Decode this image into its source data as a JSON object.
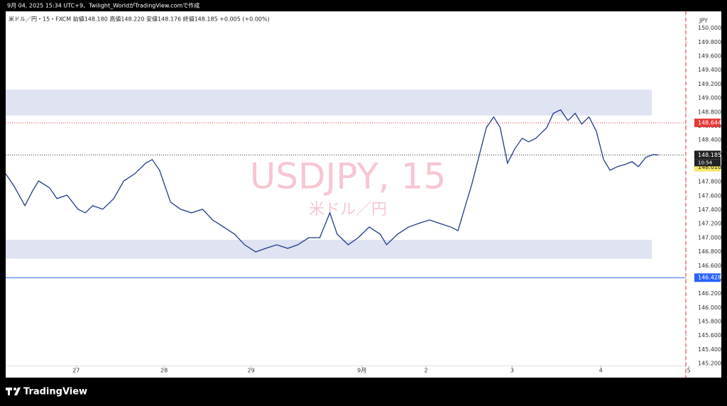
{
  "header": {
    "caption": "9月 04, 2025 15:34 UTC+9、Twilight_WorldがTradingView.comで作成",
    "brand": "TradingView"
  },
  "chart_data": {
    "type": "line",
    "symbol_line": "米ドル／円・15・FXCM  始値148.180  高値148.220  安値148.176  終値148.185  +0.005 (+0.00%)",
    "watermark": "USDJPY, 15",
    "watermark_sub": "米ドル／円",
    "currency": "JPY",
    "countdown": "10:54",
    "color": "#1e3a8a",
    "x": [
      0,
      9,
      21,
      29,
      36,
      48,
      56,
      67,
      79,
      87,
      95,
      106,
      118,
      129,
      141,
      153,
      160,
      168,
      180,
      191,
      203,
      215,
      226,
      238,
      250,
      261,
      273,
      284,
      296,
      308,
      319,
      331,
      343,
      354,
      362,
      374,
      385,
      397,
      409,
      416,
      428,
      440,
      451,
      463,
      474,
      486,
      494,
      502,
      509,
      517,
      525,
      533,
      540,
      548,
      556,
      564,
      571,
      579,
      591,
      598,
      606,
      614,
      622,
      629,
      637,
      645,
      653,
      660,
      668,
      676,
      684,
      691,
      699,
      707,
      713
    ],
    "values": [
      147.915,
      147.742,
      147.458,
      147.661,
      147.814,
      147.712,
      147.56,
      147.61,
      147.407,
      147.356,
      147.458,
      147.407,
      147.56,
      147.814,
      147.915,
      148.068,
      148.119,
      147.966,
      147.509,
      147.407,
      147.356,
      147.407,
      147.254,
      147.153,
      147.051,
      146.898,
      146.797,
      146.848,
      146.898,
      146.848,
      146.898,
      147.0,
      147.0,
      147.356,
      147.051,
      146.898,
      147.0,
      147.153,
      147.051,
      146.898,
      147.051,
      147.153,
      147.204,
      147.254,
      147.204,
      147.153,
      147.102,
      147.458,
      147.763,
      148.17,
      148.577,
      148.729,
      148.577,
      148.068,
      148.271,
      148.424,
      148.373,
      148.424,
      148.577,
      148.78,
      148.831,
      148.678,
      148.78,
      148.627,
      148.729,
      148.526,
      148.119,
      147.966,
      148.017,
      148.048,
      148.088,
      148.017,
      148.149,
      148.19,
      148.185
    ],
    "xlim": [
      0,
      742
    ],
    "xticks": [
      {
        "value": 77,
        "label": "27"
      },
      {
        "value": 173,
        "label": "28"
      },
      {
        "value": 268,
        "label": "29"
      },
      {
        "value": 389,
        "label": "9月"
      },
      {
        "value": 459,
        "label": "2"
      },
      {
        "value": 553,
        "label": "3"
      },
      {
        "value": 650,
        "label": "4"
      },
      {
        "value": 746,
        "label": "5"
      }
    ],
    "ylim": [
      145.17,
      150.22
    ],
    "yticks": [
      {
        "value": 145.2,
        "label": "145.200"
      },
      {
        "value": 145.4,
        "label": "145.400"
      },
      {
        "value": 145.6,
        "label": "145.600"
      },
      {
        "value": 145.8,
        "label": "145.800"
      },
      {
        "value": 146.0,
        "label": "146.000"
      },
      {
        "value": 146.2,
        "label": "146.200"
      },
      {
        "value": 146.4,
        "label": "146.400"
      },
      {
        "value": 146.6,
        "label": "146.600"
      },
      {
        "value": 146.8,
        "label": "146.800"
      },
      {
        "value": 147.0,
        "label": "147.000"
      },
      {
        "value": 147.2,
        "label": "147.200"
      },
      {
        "value": 147.4,
        "label": "147.400"
      },
      {
        "value": 147.6,
        "label": "147.600"
      },
      {
        "value": 147.8,
        "label": "147.800"
      },
      {
        "value": 148.0,
        "label": "148.000"
      },
      {
        "value": 148.2,
        "label": "148.200"
      },
      {
        "value": 148.4,
        "label": "148.400"
      },
      {
        "value": 148.6,
        "label": "148.600"
      },
      {
        "value": 148.8,
        "label": "148.800"
      },
      {
        "value": 149.0,
        "label": "149.000"
      },
      {
        "value": 149.2,
        "label": "149.200"
      },
      {
        "value": 149.4,
        "label": "149.400"
      },
      {
        "value": 149.6,
        "label": "149.600"
      },
      {
        "value": 149.8,
        "label": "149.800"
      },
      {
        "value": 150.0,
        "label": "150.000"
      }
    ],
    "grid": false,
    "zones": [
      {
        "from": 148.75,
        "to": 149.12,
        "color": "#dfe3f2"
      },
      {
        "from": 146.7,
        "to": 146.97,
        "color": "#dfe3f2"
      }
    ],
    "price_lines": [
      {
        "value": 148.644,
        "label": "148.644",
        "color": "#e53935",
        "style": "dotted"
      },
      {
        "value": 148.185,
        "label": "148.185",
        "color": "#222222",
        "style": "dotted"
      },
      {
        "value": 148.01,
        "label": "148.010",
        "color": "#f5e663",
        "style": "none"
      },
      {
        "value": 146.428,
        "label": "146.428",
        "color": "#2962ff",
        "style": "solid"
      }
    ]
  }
}
